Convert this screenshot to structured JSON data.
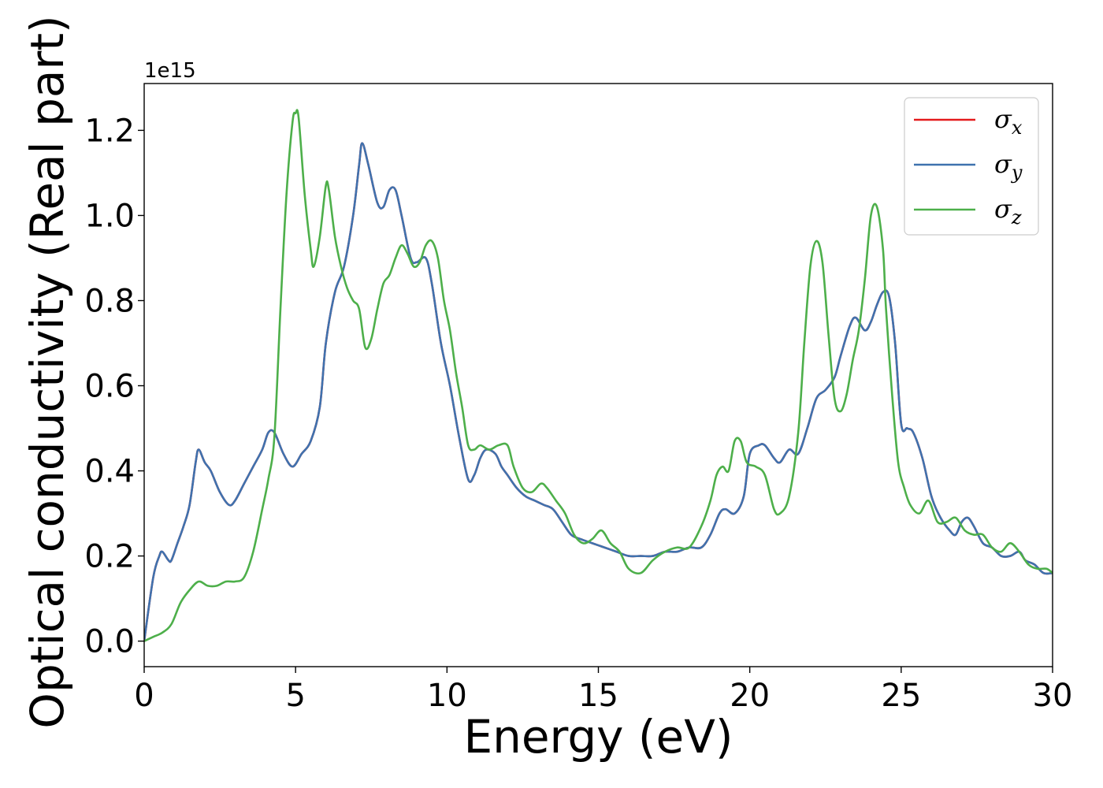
{
  "chart_data": {
    "type": "line",
    "xlabel": "Energy (eV)",
    "ylabel": "Optical conductivity (Real part)",
    "y_offset_label": "1e15",
    "xlim": [
      0,
      30
    ],
    "ylim": [
      -0.06,
      1.31
    ],
    "x_ticks": [
      0,
      5,
      10,
      15,
      20,
      25,
      30
    ],
    "x_tick_labels": [
      "0",
      "5",
      "10",
      "15",
      "20",
      "25",
      "30"
    ],
    "y_ticks": [
      0.0,
      0.2,
      0.4,
      0.6,
      0.8,
      1.0,
      1.2
    ],
    "y_tick_labels": [
      "0.0",
      "0.2",
      "0.4",
      "0.6",
      "0.8",
      "1.0",
      "1.2"
    ],
    "grid": false,
    "legend_position": "top-right",
    "series": [
      {
        "name": "σx",
        "base": "σ",
        "sub": "x",
        "color": "#e41a1c",
        "x": [
          0,
          0.3,
          0.5,
          0.6,
          0.8,
          0.9,
          1.1,
          1.3,
          1.5,
          1.7,
          1.8,
          2.0,
          2.2,
          2.5,
          2.8,
          3.0,
          3.3,
          3.6,
          3.9,
          4.1,
          4.3,
          4.6,
          4.9,
          5.2,
          5.5,
          5.8,
          6.0,
          6.3,
          6.6,
          6.9,
          7.1,
          7.2,
          7.4,
          7.7,
          7.9,
          8.1,
          8.3,
          8.5,
          8.8,
          9.0,
          9.3,
          9.5,
          9.8,
          10.1,
          10.4,
          10.7,
          10.9,
          11.1,
          11.3,
          11.6,
          11.8,
          12.0,
          12.3,
          12.6,
          12.9,
          13.2,
          13.5,
          13.8,
          14.1,
          14.4,
          14.8,
          15.2,
          15.6,
          16.0,
          16.4,
          16.8,
          17.2,
          17.6,
          18.0,
          18.4,
          18.7,
          19.0,
          19.2,
          19.5,
          19.8,
          20.0,
          20.3,
          20.5,
          20.8,
          21.0,
          21.3,
          21.6,
          21.9,
          22.2,
          22.5,
          22.8,
          23.0,
          23.3,
          23.5,
          23.8,
          24.0,
          24.2,
          24.4,
          24.6,
          24.8,
          25.0,
          25.2,
          25.4,
          25.7,
          26.0,
          26.3,
          26.6,
          26.8,
          27.0,
          27.2,
          27.4,
          27.7,
          28.0,
          28.3,
          28.6,
          28.9,
          29.1,
          29.4,
          29.7,
          30.0
        ],
        "y": [
          0.0,
          0.15,
          0.2,
          0.21,
          0.19,
          0.19,
          0.23,
          0.27,
          0.32,
          0.42,
          0.45,
          0.42,
          0.4,
          0.35,
          0.32,
          0.33,
          0.37,
          0.41,
          0.45,
          0.49,
          0.49,
          0.44,
          0.41,
          0.44,
          0.47,
          0.55,
          0.7,
          0.82,
          0.88,
          1.0,
          1.12,
          1.17,
          1.12,
          1.03,
          1.02,
          1.06,
          1.06,
          1.0,
          0.9,
          0.89,
          0.9,
          0.84,
          0.7,
          0.6,
          0.48,
          0.38,
          0.39,
          0.43,
          0.45,
          0.44,
          0.41,
          0.39,
          0.36,
          0.34,
          0.33,
          0.32,
          0.31,
          0.28,
          0.25,
          0.24,
          0.23,
          0.22,
          0.21,
          0.2,
          0.2,
          0.2,
          0.21,
          0.21,
          0.22,
          0.22,
          0.25,
          0.3,
          0.31,
          0.3,
          0.34,
          0.44,
          0.46,
          0.46,
          0.43,
          0.42,
          0.45,
          0.44,
          0.5,
          0.57,
          0.59,
          0.62,
          0.67,
          0.74,
          0.76,
          0.73,
          0.75,
          0.79,
          0.82,
          0.81,
          0.7,
          0.51,
          0.5,
          0.49,
          0.43,
          0.34,
          0.29,
          0.26,
          0.25,
          0.28,
          0.29,
          0.27,
          0.23,
          0.22,
          0.2,
          0.2,
          0.21,
          0.19,
          0.18,
          0.16,
          0.16
        ]
      },
      {
        "name": "σy",
        "base": "σ",
        "sub": "y",
        "color": "#3f72ae",
        "x": [
          0,
          0.3,
          0.5,
          0.6,
          0.8,
          0.9,
          1.1,
          1.3,
          1.5,
          1.7,
          1.8,
          2.0,
          2.2,
          2.5,
          2.8,
          3.0,
          3.3,
          3.6,
          3.9,
          4.1,
          4.3,
          4.6,
          4.9,
          5.2,
          5.5,
          5.8,
          6.0,
          6.3,
          6.6,
          6.9,
          7.1,
          7.2,
          7.4,
          7.7,
          7.9,
          8.1,
          8.3,
          8.5,
          8.8,
          9.0,
          9.3,
          9.5,
          9.8,
          10.1,
          10.4,
          10.7,
          10.9,
          11.1,
          11.3,
          11.6,
          11.8,
          12.0,
          12.3,
          12.6,
          12.9,
          13.2,
          13.5,
          13.8,
          14.1,
          14.4,
          14.8,
          15.2,
          15.6,
          16.0,
          16.4,
          16.8,
          17.2,
          17.6,
          18.0,
          18.4,
          18.7,
          19.0,
          19.2,
          19.5,
          19.8,
          20.0,
          20.3,
          20.5,
          20.8,
          21.0,
          21.3,
          21.6,
          21.9,
          22.2,
          22.5,
          22.8,
          23.0,
          23.3,
          23.5,
          23.8,
          24.0,
          24.2,
          24.4,
          24.6,
          24.8,
          25.0,
          25.2,
          25.4,
          25.7,
          26.0,
          26.3,
          26.6,
          26.8,
          27.0,
          27.2,
          27.4,
          27.7,
          28.0,
          28.3,
          28.6,
          28.9,
          29.1,
          29.4,
          29.7,
          30.0
        ],
        "y": [
          0.0,
          0.15,
          0.2,
          0.21,
          0.19,
          0.19,
          0.23,
          0.27,
          0.32,
          0.42,
          0.45,
          0.42,
          0.4,
          0.35,
          0.32,
          0.33,
          0.37,
          0.41,
          0.45,
          0.49,
          0.49,
          0.44,
          0.41,
          0.44,
          0.47,
          0.55,
          0.7,
          0.82,
          0.88,
          1.0,
          1.12,
          1.17,
          1.12,
          1.03,
          1.02,
          1.06,
          1.06,
          1.0,
          0.9,
          0.89,
          0.9,
          0.84,
          0.7,
          0.6,
          0.48,
          0.38,
          0.39,
          0.43,
          0.45,
          0.44,
          0.41,
          0.39,
          0.36,
          0.34,
          0.33,
          0.32,
          0.31,
          0.28,
          0.25,
          0.24,
          0.23,
          0.22,
          0.21,
          0.2,
          0.2,
          0.2,
          0.21,
          0.21,
          0.22,
          0.22,
          0.25,
          0.3,
          0.31,
          0.3,
          0.34,
          0.44,
          0.46,
          0.46,
          0.43,
          0.42,
          0.45,
          0.44,
          0.5,
          0.57,
          0.59,
          0.62,
          0.67,
          0.74,
          0.76,
          0.73,
          0.75,
          0.79,
          0.82,
          0.81,
          0.7,
          0.51,
          0.5,
          0.49,
          0.43,
          0.34,
          0.29,
          0.26,
          0.25,
          0.28,
          0.29,
          0.27,
          0.23,
          0.22,
          0.2,
          0.2,
          0.21,
          0.19,
          0.18,
          0.16,
          0.16
        ]
      },
      {
        "name": "σz",
        "base": "σ",
        "sub": "z",
        "color": "#4daf4a",
        "x": [
          0,
          0.3,
          0.6,
          0.9,
          1.2,
          1.5,
          1.8,
          2.1,
          2.4,
          2.7,
          3.0,
          3.3,
          3.6,
          3.9,
          4.1,
          4.3,
          4.5,
          4.7,
          4.9,
          5.0,
          5.1,
          5.3,
          5.5,
          5.6,
          5.8,
          6.0,
          6.1,
          6.3,
          6.5,
          6.7,
          6.9,
          7.1,
          7.3,
          7.5,
          7.7,
          7.9,
          8.1,
          8.3,
          8.5,
          8.7,
          8.9,
          9.1,
          9.3,
          9.5,
          9.7,
          9.9,
          10.1,
          10.3,
          10.5,
          10.7,
          10.9,
          11.1,
          11.4,
          11.7,
          12.0,
          12.2,
          12.5,
          12.8,
          13.1,
          13.3,
          13.6,
          13.9,
          14.2,
          14.5,
          14.8,
          15.1,
          15.4,
          15.7,
          16.0,
          16.4,
          16.8,
          17.2,
          17.6,
          18.0,
          18.4,
          18.7,
          18.9,
          19.1,
          19.3,
          19.5,
          19.7,
          19.9,
          20.2,
          20.5,
          20.8,
          21.0,
          21.3,
          21.6,
          21.8,
          22.0,
          22.2,
          22.4,
          22.6,
          22.8,
          23.0,
          23.2,
          23.4,
          23.6,
          23.8,
          24.0,
          24.2,
          24.4,
          24.5,
          24.7,
          24.9,
          25.1,
          25.3,
          25.6,
          25.9,
          26.2,
          26.5,
          26.8,
          27.1,
          27.4,
          27.7,
          28.0,
          28.3,
          28.6,
          28.9,
          29.2,
          29.5,
          29.8,
          30.0
        ],
        "y": [
          0.0,
          0.01,
          0.02,
          0.04,
          0.09,
          0.12,
          0.14,
          0.13,
          0.13,
          0.14,
          0.14,
          0.15,
          0.21,
          0.31,
          0.38,
          0.48,
          0.78,
          1.05,
          1.22,
          1.24,
          1.23,
          1.05,
          0.92,
          0.88,
          0.95,
          1.07,
          1.06,
          0.95,
          0.88,
          0.83,
          0.8,
          0.78,
          0.69,
          0.71,
          0.78,
          0.84,
          0.86,
          0.9,
          0.93,
          0.91,
          0.88,
          0.89,
          0.93,
          0.94,
          0.9,
          0.8,
          0.73,
          0.63,
          0.55,
          0.46,
          0.45,
          0.46,
          0.45,
          0.46,
          0.46,
          0.41,
          0.36,
          0.35,
          0.37,
          0.36,
          0.33,
          0.3,
          0.25,
          0.23,
          0.24,
          0.26,
          0.23,
          0.21,
          0.17,
          0.16,
          0.19,
          0.21,
          0.22,
          0.22,
          0.27,
          0.33,
          0.39,
          0.41,
          0.4,
          0.47,
          0.47,
          0.42,
          0.41,
          0.39,
          0.31,
          0.3,
          0.34,
          0.49,
          0.7,
          0.88,
          0.94,
          0.89,
          0.72,
          0.57,
          0.54,
          0.58,
          0.66,
          0.73,
          0.85,
          1.0,
          1.02,
          0.92,
          0.78,
          0.58,
          0.42,
          0.36,
          0.32,
          0.3,
          0.33,
          0.28,
          0.28,
          0.29,
          0.26,
          0.25,
          0.25,
          0.22,
          0.21,
          0.23,
          0.21,
          0.18,
          0.17,
          0.17,
          0.16
        ]
      }
    ]
  }
}
